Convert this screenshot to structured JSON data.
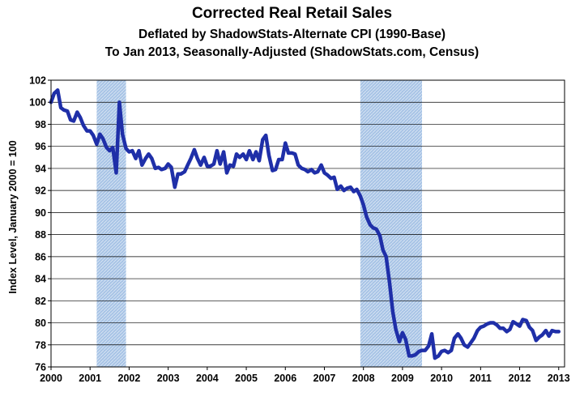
{
  "chart_data": {
    "type": "line",
    "title": "Corrected Real Retail Sales",
    "subtitle": "Deflated by ShadowStats-Alternate CPI (1990-Base)",
    "subtitle2": "To Jan 2013, Seasonally-Adjusted (ShadowStats.com, Census)",
    "xlabel": "",
    "ylabel": "Index Level, January 2000 = 100",
    "xlim": [
      2000,
      2013.15
    ],
    "ylim": [
      76,
      102
    ],
    "x_ticks": [
      "2000",
      "2001",
      "2002",
      "2003",
      "2004",
      "2005",
      "2006",
      "2007",
      "2008",
      "2009",
      "2010",
      "2011",
      "2012",
      "2013"
    ],
    "y_ticks": [
      76,
      78,
      80,
      82,
      84,
      86,
      88,
      90,
      92,
      94,
      96,
      98,
      100,
      102
    ],
    "grid": "horizontal",
    "line_color": "#1f2fa8",
    "recession_color": "#a8c4e6",
    "recessions": [
      {
        "start": 2001.17,
        "end": 2001.92
      },
      {
        "start": 2007.92,
        "end": 2009.5
      }
    ],
    "series": [
      {
        "x": [
          2000.0,
          2000.08,
          2000.17,
          2000.25,
          2000.33,
          2000.42,
          2000.5,
          2000.58,
          2000.67,
          2000.75,
          2000.83,
          2000.92,
          2001.0,
          2001.08,
          2001.17,
          2001.25,
          2001.33,
          2001.42,
          2001.5,
          2001.58,
          2001.67,
          2001.75,
          2001.83,
          2001.92,
          2002.0,
          2002.08,
          2002.17,
          2002.25,
          2002.33,
          2002.42,
          2002.5,
          2002.58,
          2002.67,
          2002.75,
          2002.83,
          2002.92,
          2003.0,
          2003.08,
          2003.17,
          2003.25,
          2003.33,
          2003.42,
          2003.5,
          2003.58,
          2003.67,
          2003.75,
          2003.83,
          2003.92,
          2004.0,
          2004.08,
          2004.17,
          2004.25,
          2004.33,
          2004.42,
          2004.5,
          2004.58,
          2004.67,
          2004.75,
          2004.83,
          2004.92,
          2005.0,
          2005.08,
          2005.17,
          2005.25,
          2005.33,
          2005.42,
          2005.5,
          2005.58,
          2005.67,
          2005.75,
          2005.83,
          2005.92,
          2006.0,
          2006.08,
          2006.17,
          2006.25,
          2006.33,
          2006.42,
          2006.5,
          2006.58,
          2006.67,
          2006.75,
          2006.83,
          2006.92,
          2007.0,
          2007.08,
          2007.17,
          2007.25,
          2007.33,
          2007.42,
          2007.5,
          2007.58,
          2007.67,
          2007.75,
          2007.83,
          2007.92,
          2008.0,
          2008.08,
          2008.17,
          2008.25,
          2008.33,
          2008.42,
          2008.5,
          2008.58,
          2008.67,
          2008.75,
          2008.83,
          2008.92,
          2009.0,
          2009.08,
          2009.17,
          2009.25,
          2009.33,
          2009.42,
          2009.5,
          2009.58,
          2009.67,
          2009.75,
          2009.83,
          2009.92,
          2010.0,
          2010.08,
          2010.17,
          2010.25,
          2010.33,
          2010.42,
          2010.5,
          2010.58,
          2010.67,
          2010.75,
          2010.83,
          2010.92,
          2011.0,
          2011.08,
          2011.17,
          2011.25,
          2011.33,
          2011.42,
          2011.5,
          2011.58,
          2011.67,
          2011.75,
          2011.83,
          2011.92,
          2012.0,
          2012.08,
          2012.17,
          2012.25,
          2012.33,
          2012.42,
          2012.5,
          2012.58,
          2012.67,
          2012.75,
          2012.83,
          2012.92,
          2013.0
        ],
        "values": [
          100.0,
          100.8,
          101.1,
          99.5,
          99.3,
          99.2,
          98.4,
          98.3,
          99.1,
          98.6,
          97.9,
          97.4,
          97.4,
          97.0,
          96.2,
          97.1,
          96.7,
          95.9,
          95.6,
          95.9,
          93.6,
          100.0,
          97.1,
          95.8,
          95.5,
          95.6,
          94.9,
          95.6,
          94.3,
          94.9,
          95.3,
          94.9,
          94.0,
          94.1,
          93.9,
          94.0,
          94.4,
          94.1,
          92.3,
          93.5,
          93.5,
          93.7,
          94.3,
          94.9,
          95.7,
          94.9,
          94.3,
          95.0,
          94.2,
          94.2,
          94.4,
          95.6,
          94.4,
          95.5,
          93.6,
          94.3,
          94.2,
          95.3,
          95.0,
          95.3,
          94.8,
          95.6,
          94.8,
          95.5,
          94.7,
          96.6,
          97.0,
          95.2,
          93.8,
          93.9,
          94.8,
          94.8,
          96.3,
          95.4,
          95.4,
          95.3,
          94.3,
          94.0,
          93.9,
          93.7,
          93.9,
          93.6,
          93.7,
          94.3,
          93.6,
          93.4,
          93.1,
          93.2,
          92.1,
          92.4,
          92.0,
          92.2,
          92.3,
          91.9,
          92.1,
          91.5,
          90.7,
          89.6,
          88.9,
          88.6,
          88.5,
          87.9,
          86.6,
          86.0,
          83.6,
          81.0,
          79.4,
          78.3,
          79.1,
          78.5,
          77.0,
          77.0,
          77.1,
          77.4,
          77.5,
          77.5,
          77.9,
          79.0,
          76.8,
          77.0,
          77.4,
          77.5,
          77.3,
          77.5,
          78.6,
          79.0,
          78.6,
          78.0,
          77.8,
          78.2,
          78.6,
          79.3,
          79.6,
          79.7,
          79.9,
          80.0,
          80.0,
          79.8,
          79.5,
          79.5,
          79.2,
          79.4,
          80.1,
          79.9,
          79.7,
          80.3,
          80.2,
          79.6,
          79.3,
          78.4,
          78.7,
          78.9,
          79.3,
          78.8,
          79.3,
          79.2,
          79.2
        ]
      }
    ]
  }
}
